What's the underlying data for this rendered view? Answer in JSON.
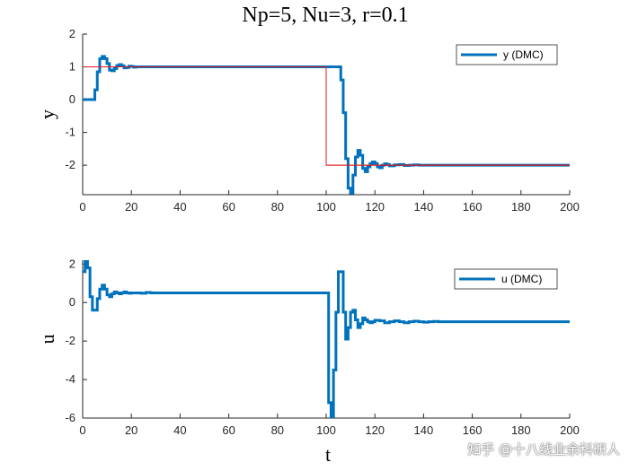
{
  "figure_title": "Np=5, Nu=3, r=0.1",
  "watermark": "知乎 @十八线业余科研人",
  "colors": {
    "series": "#0072BD",
    "reference": "#E31A1C",
    "axis": "#262626"
  },
  "chart_data": [
    {
      "type": "line",
      "style": "stairs",
      "title": "Np=5, Nu=3, r=0.1",
      "xlabel": "",
      "ylabel": "y",
      "xlim": [
        0,
        200
      ],
      "ylim": [
        -2.9,
        2
      ],
      "x_ticks": [
        0,
        20,
        40,
        60,
        80,
        100,
        120,
        140,
        160,
        180,
        200
      ],
      "y_ticks": [
        -2,
        -1,
        0,
        1,
        2
      ],
      "legend": {
        "position": "top-right",
        "entries": [
          "y (DMC)"
        ]
      },
      "series": [
        {
          "name": "y (DMC)",
          "x": [
            0,
            5,
            6,
            7,
            8,
            9,
            10,
            11,
            12,
            13,
            14,
            15,
            16,
            17,
            18,
            19,
            20,
            21,
            22,
            23,
            105,
            106,
            107,
            108,
            109,
            110,
            111,
            112,
            113,
            114,
            115,
            116,
            117,
            118,
            119,
            120,
            121,
            122,
            123,
            124,
            125,
            126,
            127,
            128,
            130,
            132,
            134,
            136,
            138,
            140,
            142,
            145
          ],
          "y": [
            0,
            0.3,
            0.85,
            1.25,
            1.32,
            1.25,
            1.1,
            0.9,
            0.88,
            0.95,
            1.04,
            1.07,
            1.03,
            0.97,
            0.98,
            1.02,
            1.01,
            0.99,
            1.0,
            1.0,
            1.0,
            0.6,
            -0.4,
            -1.8,
            -2.7,
            -2.85,
            -2.3,
            -1.75,
            -1.55,
            -1.7,
            -2.1,
            -2.2,
            -2.05,
            -1.95,
            -1.9,
            -1.95,
            -2.05,
            -2.08,
            -2.0,
            -1.96,
            -1.98,
            -2.02,
            -2.02,
            -1.99,
            -1.98,
            -2.01,
            -2.0,
            -1.99,
            -2.0,
            -2.0,
            -2.0,
            -2.0
          ]
        },
        {
          "name": "reference",
          "x": [
            0,
            1,
            100,
            200
          ],
          "y": [
            1,
            1,
            -2,
            -2
          ]
        }
      ]
    },
    {
      "type": "line",
      "style": "stairs",
      "title": "",
      "xlabel": "t",
      "ylabel": "u",
      "xlim": [
        0,
        200
      ],
      "ylim": [
        -6,
        2.2
      ],
      "x_ticks": [
        0,
        20,
        40,
        60,
        80,
        100,
        120,
        140,
        160,
        180,
        200
      ],
      "y_ticks": [
        -6,
        -4,
        -2,
        0,
        2
      ],
      "legend": {
        "position": "top-right",
        "entries": [
          "u (DMC)"
        ]
      },
      "series": [
        {
          "name": "u (DMC)",
          "x": [
            0,
            1,
            2,
            3,
            4,
            5,
            6,
            7,
            8,
            9,
            10,
            11,
            12,
            13,
            14,
            15,
            16,
            17,
            18,
            19,
            20,
            22,
            24,
            26,
            28,
            30,
            32,
            101,
            102,
            103,
            104,
            105,
            106,
            107,
            108,
            109,
            110,
            111,
            112,
            113,
            114,
            115,
            116,
            117,
            118,
            119,
            120,
            122,
            124,
            126,
            128,
            130,
            132,
            134,
            136,
            138,
            140,
            142,
            144,
            146,
            148,
            150,
            155,
            160
          ],
          "y": [
            1.6,
            2.2,
            1.8,
            0.3,
            -0.4,
            -0.4,
            0.2,
            0.7,
            0.9,
            0.7,
            0.4,
            0.3,
            0.45,
            0.55,
            0.5,
            0.45,
            0.5,
            0.55,
            0.5,
            0.48,
            0.5,
            0.5,
            0.48,
            0.52,
            0.5,
            0.5,
            0.5,
            -5.2,
            -6.0,
            -3.5,
            -0.5,
            1.6,
            1.6,
            -0.5,
            -1.9,
            -1.3,
            -0.5,
            -0.4,
            -0.9,
            -1.3,
            -1.1,
            -0.8,
            -0.9,
            -1.0,
            -1.05,
            -1.0,
            -0.92,
            -0.95,
            -1.05,
            -1.0,
            -0.95,
            -1.0,
            -1.05,
            -1.0,
            -0.97,
            -1.0,
            -1.02,
            -1.0,
            -0.98,
            -1.0,
            -1.0,
            -1.0,
            -1.0,
            -1.0
          ]
        }
      ]
    }
  ]
}
